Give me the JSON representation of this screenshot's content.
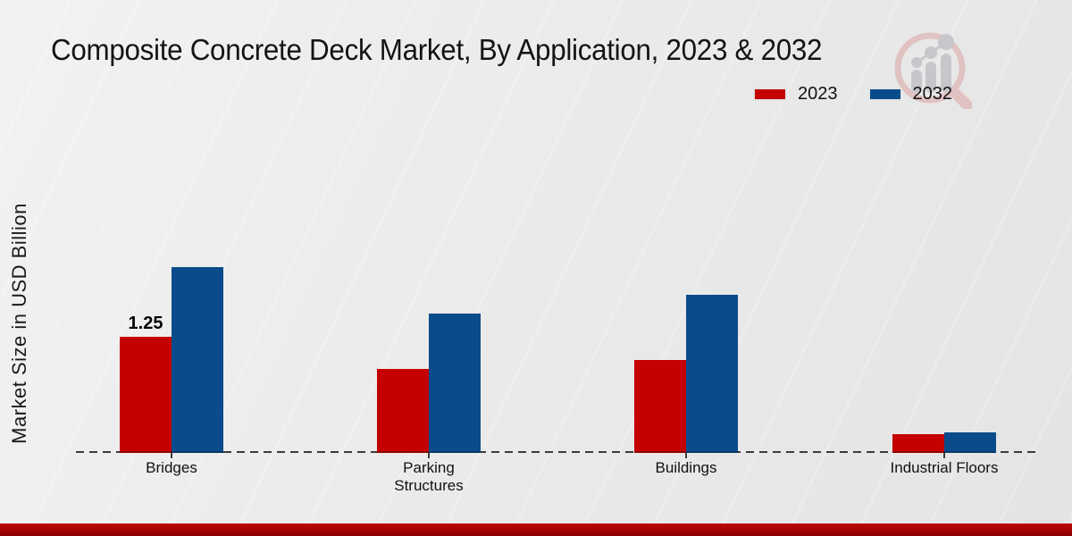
{
  "icons": {
    "watermark": "bar-chart-magnifier-logo"
  },
  "colors": {
    "background": "#ebebeb",
    "accent_red": "#c40000",
    "accent_blue": "#0a4b8c",
    "footer_band": "#a30202",
    "axis_line": "#3c3c3c"
  },
  "chart_data": {
    "type": "bar",
    "title": "Composite Concrete Deck Market, By Application, 2023 & 2032",
    "ylabel": "Market Size in USD Billion",
    "xlabel": "",
    "categories": [
      "Bridges",
      "Parking Structures",
      "Buildings",
      "Industrial Floors"
    ],
    "series": [
      {
        "name": "2023",
        "color": "#c40000",
        "values": [
          1.25,
          0.9,
          1.0,
          0.2
        ]
      },
      {
        "name": "2032",
        "color": "#0a4b8c",
        "values": [
          2.0,
          1.5,
          1.7,
          0.22
        ]
      }
    ],
    "data_labels": [
      {
        "series": "2023",
        "category": "Bridges",
        "text": "1.25"
      }
    ],
    "ylim": [
      0,
      2.4
    ],
    "grid": false,
    "legend_position": "top-right",
    "baseline_style": "dashed"
  }
}
